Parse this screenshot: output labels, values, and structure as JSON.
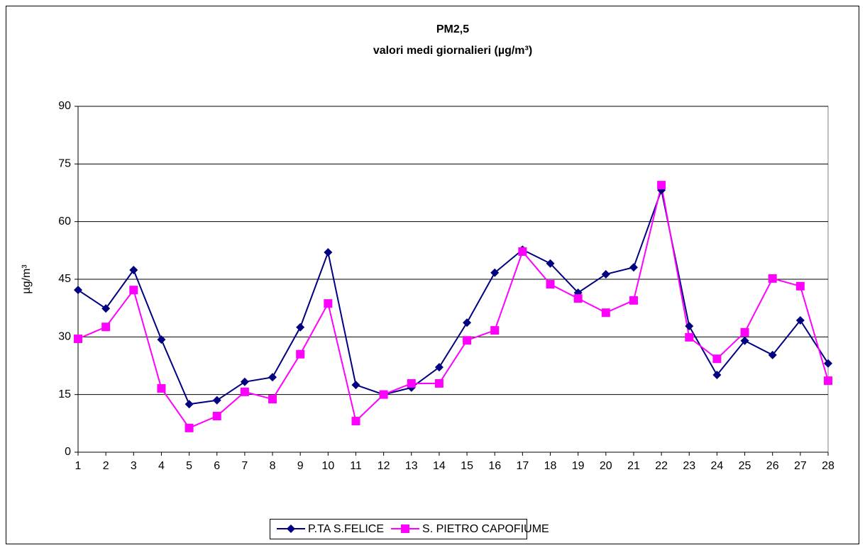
{
  "chart_data": {
    "type": "line",
    "title": "PM2,5",
    "subtitle": "valori medi giornalieri (µg/m³)",
    "y_label": "µg/m³",
    "categories": [
      1,
      2,
      3,
      4,
      5,
      6,
      7,
      8,
      9,
      10,
      11,
      12,
      13,
      14,
      15,
      16,
      17,
      18,
      19,
      20,
      21,
      22,
      23,
      24,
      25,
      26,
      27,
      28
    ],
    "series": [
      {
        "name": "P.TA S.FELICE",
        "color": "#000080",
        "marker": "diamond",
        "values": [
          42.2,
          37.4,
          47.4,
          29.3,
          12.5,
          13.5,
          18.3,
          19.5,
          32.5,
          52,
          17.5,
          15,
          16.8,
          22.1,
          33.7,
          46.7,
          52.7,
          49.1,
          41.5,
          46.3,
          48.1,
          68.2,
          32.8,
          20.1,
          29,
          25.3,
          34.3,
          23.1
        ]
      },
      {
        "name": "S. PIETRO CAPOFIUME",
        "color": "#ff00ff",
        "marker": "square",
        "values": [
          29.5,
          32.6,
          42.2,
          16.6,
          6.3,
          9.4,
          15.7,
          13.8,
          25.5,
          38.7,
          8.1,
          15,
          17.9,
          17.9,
          29.1,
          31.7,
          52.2,
          43.7,
          40,
          36.3,
          39.5,
          69.5,
          29.9,
          24.3,
          31.2,
          45.2,
          43.2,
          18.6
        ]
      }
    ],
    "ylim": [
      0,
      90
    ],
    "yticks": [
      0,
      15,
      30,
      45,
      60,
      75,
      90
    ],
    "grid": true,
    "legend": "bottom"
  }
}
